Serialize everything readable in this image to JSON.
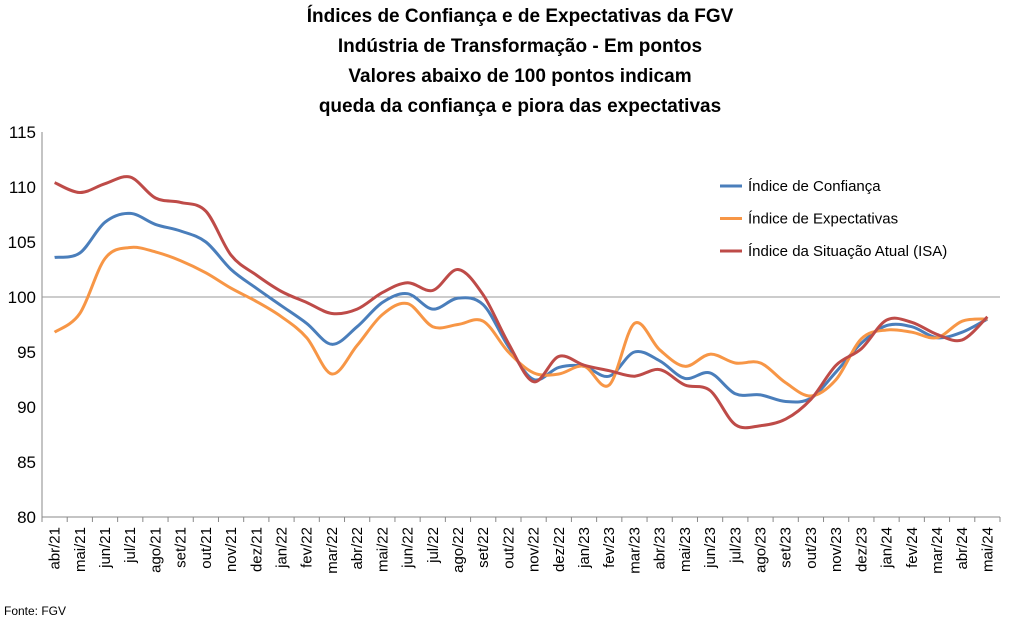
{
  "chart_data": {
    "type": "line",
    "title": [
      "Índices de Confiança e de Expectativas da FGV",
      "Indústria de Transformação - Em pontos",
      "Valores abaixo de 100 pontos indicam",
      "queda da confiança e piora das expectativas"
    ],
    "categories": [
      "abr/21",
      "mai/21",
      "jun/21",
      "jul/21",
      "ago/21",
      "set/21",
      "out/21",
      "nov/21",
      "dez/21",
      "jan/22",
      "fev/22",
      "mar/22",
      "abr/22",
      "mai/22",
      "jun/22",
      "jul/22",
      "ago/22",
      "set/22",
      "out/22",
      "nov/22",
      "dez/22",
      "jan/23",
      "fev/23",
      "mar/23",
      "abr/23",
      "mai/23",
      "jun/23",
      "jul/23",
      "ago/23",
      "set/23",
      "out/23",
      "nov/23",
      "dez/23",
      "jan/24",
      "fev/24",
      "mar/24",
      "abr/24",
      "mai/24"
    ],
    "series": [
      {
        "name": "Índice de Confiança",
        "color": "#4a7ebb",
        "values": [
          103.6,
          104,
          106.8,
          107.6,
          106.6,
          106,
          105,
          102.5,
          100.8,
          99.2,
          97.6,
          95.7,
          97.3,
          99.5,
          100.3,
          98.9,
          99.9,
          99.3,
          95.5,
          92.5,
          93.6,
          93.7,
          92.8,
          95,
          94.2,
          92.6,
          93.1,
          91.2,
          91.1,
          90.5,
          90.8,
          93.2,
          95.8,
          97.4,
          97.3,
          96.3,
          96.8,
          98
        ]
      },
      {
        "name": "Índice de Expectativas",
        "color": "#f79646",
        "values": [
          96.8,
          98.5,
          103.5,
          104.5,
          104.1,
          103.3,
          102.2,
          100.8,
          99.6,
          98.2,
          96.3,
          93,
          95.6,
          98.4,
          99.4,
          97.3,
          97.5,
          97.8,
          95,
          93.1,
          93,
          93.7,
          92,
          97.6,
          95.2,
          93.7,
          94.8,
          94,
          94,
          92.2,
          91,
          92.5,
          96.2,
          97,
          96.8,
          96.3,
          97.8,
          98
        ]
      },
      {
        "name": "Índice da Situação Atual (ISA)",
        "color": "#be4b48",
        "values": [
          110.4,
          109.5,
          110.3,
          110.9,
          109,
          108.6,
          107.8,
          103.8,
          102,
          100.5,
          99.5,
          98.5,
          98.9,
          100.4,
          101.3,
          100.6,
          102.5,
          100.2,
          95.8,
          92.3,
          94.6,
          93.8,
          93.3,
          92.8,
          93.4,
          92,
          91.5,
          88.4,
          88.3,
          88.9,
          90.7,
          93.8,
          95.3,
          97.9,
          97.7,
          96.6,
          96.1,
          98.2
        ]
      }
    ],
    "ylim": [
      80,
      115
    ],
    "yticks": [
      80,
      85,
      90,
      95,
      100,
      105,
      110,
      115
    ],
    "reference_line": 100,
    "source": "Fonte: FGV"
  }
}
